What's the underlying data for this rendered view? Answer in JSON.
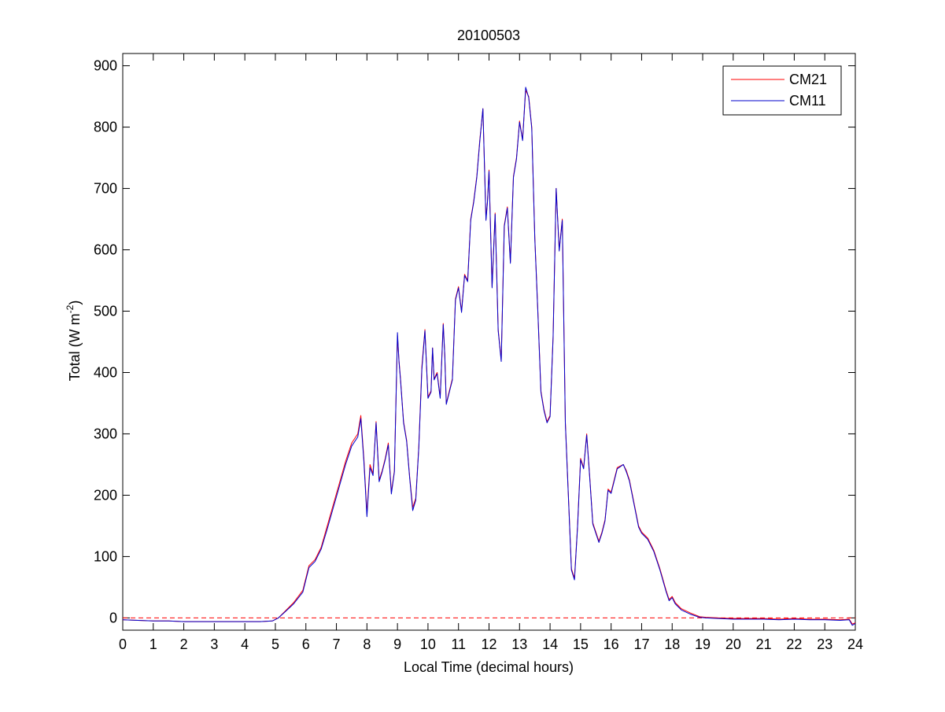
{
  "chart_data": {
    "type": "line",
    "title": "20100503",
    "xlabel": "Local Time (decimal hours)",
    "ylabel_main": "Total (W m",
    "ylabel_sup": "-2",
    "ylabel_close": ")",
    "xlim": [
      0,
      24
    ],
    "ylim": [
      -20,
      920
    ],
    "xticks": [
      0,
      1,
      2,
      3,
      4,
      5,
      6,
      7,
      8,
      9,
      10,
      11,
      12,
      13,
      14,
      15,
      16,
      17,
      18,
      19,
      20,
      21,
      22,
      23,
      24
    ],
    "yticks": [
      0,
      100,
      200,
      300,
      400,
      500,
      600,
      700,
      800,
      900
    ],
    "grid": false,
    "legend_position": "top-right",
    "zero_reference_line": {
      "y": 0,
      "style": "dashed",
      "color": "#ff0000"
    },
    "series": [
      {
        "name": "CM21",
        "color": "#ff0000",
        "x": [
          0,
          0.5,
          1,
          1.5,
          2,
          2.5,
          3,
          3.5,
          4,
          4.5,
          4.9,
          5.1,
          5.3,
          5.6,
          5.9,
          6.1,
          6.3,
          6.5,
          6.7,
          6.9,
          7.1,
          7.3,
          7.5,
          7.7,
          7.8,
          7.9,
          8.0,
          8.1,
          8.2,
          8.3,
          8.4,
          8.5,
          8.6,
          8.7,
          8.8,
          8.9,
          9.0,
          9.05,
          9.1,
          9.2,
          9.3,
          9.4,
          9.5,
          9.6,
          9.7,
          9.8,
          9.9,
          10.0,
          10.1,
          10.15,
          10.2,
          10.3,
          10.4,
          10.5,
          10.55,
          10.6,
          10.7,
          10.8,
          10.9,
          11.0,
          11.1,
          11.2,
          11.3,
          11.4,
          11.5,
          11.6,
          11.7,
          11.8,
          11.9,
          11.95,
          12.0,
          12.1,
          12.2,
          12.3,
          12.4,
          12.5,
          12.6,
          12.7,
          12.8,
          12.9,
          13.0,
          13.1,
          13.2,
          13.3,
          13.4,
          13.5,
          13.6,
          13.7,
          13.8,
          13.9,
          14.0,
          14.1,
          14.2,
          14.3,
          14.4,
          14.5,
          14.6,
          14.7,
          14.8,
          14.9,
          15.0,
          15.1,
          15.2,
          15.3,
          15.4,
          15.5,
          15.6,
          15.7,
          15.8,
          15.9,
          16.0,
          16.2,
          16.4,
          16.5,
          16.6,
          16.7,
          16.9,
          17.0,
          17.2,
          17.4,
          17.6,
          17.8,
          17.9,
          18.0,
          18.1,
          18.3,
          18.6,
          18.9,
          19.1,
          19.5,
          20,
          20.5,
          21,
          21.5,
          22,
          22.5,
          23,
          23.5,
          23.8,
          23.9,
          24
        ],
        "y": [
          -3,
          -4,
          -5,
          -5,
          -6,
          -6,
          -6,
          -6,
          -6,
          -6,
          -5,
          0,
          10,
          25,
          45,
          85,
          95,
          115,
          150,
          185,
          220,
          255,
          285,
          300,
          330,
          260,
          170,
          250,
          235,
          320,
          225,
          240,
          260,
          285,
          205,
          240,
          460,
          420,
          390,
          320,
          290,
          230,
          180,
          195,
          280,
          410,
          470,
          360,
          370,
          440,
          390,
          400,
          360,
          480,
          430,
          350,
          370,
          390,
          520,
          540,
          500,
          560,
          550,
          650,
          680,
          720,
          780,
          830,
          650,
          680,
          730,
          540,
          660,
          470,
          420,
          640,
          670,
          580,
          720,
          750,
          810,
          780,
          860,
          850,
          800,
          620,
          500,
          370,
          340,
          320,
          330,
          460,
          700,
          600,
          650,
          320,
          200,
          80,
          65,
          150,
          260,
          245,
          300,
          230,
          155,
          140,
          125,
          140,
          160,
          210,
          205,
          245,
          250,
          240,
          225,
          200,
          150,
          140,
          130,
          110,
          80,
          45,
          30,
          35,
          25,
          15,
          8,
          2,
          1,
          0,
          -1,
          -1,
          -1,
          -2,
          -1,
          -2,
          -2,
          -3,
          -2,
          -10,
          -8
        ]
      },
      {
        "name": "CM11",
        "color": "#0000cc",
        "x": [
          0,
          0.5,
          1,
          1.5,
          2,
          2.5,
          3,
          3.5,
          4,
          4.5,
          4.9,
          5.1,
          5.3,
          5.6,
          5.9,
          6.1,
          6.3,
          6.5,
          6.7,
          6.9,
          7.1,
          7.3,
          7.5,
          7.7,
          7.8,
          7.9,
          8.0,
          8.1,
          8.2,
          8.3,
          8.4,
          8.5,
          8.6,
          8.7,
          8.8,
          8.9,
          9.0,
          9.05,
          9.1,
          9.2,
          9.3,
          9.4,
          9.5,
          9.6,
          9.7,
          9.8,
          9.9,
          10.0,
          10.1,
          10.15,
          10.2,
          10.3,
          10.4,
          10.5,
          10.55,
          10.6,
          10.7,
          10.8,
          10.9,
          11.0,
          11.1,
          11.2,
          11.3,
          11.4,
          11.5,
          11.6,
          11.7,
          11.8,
          11.9,
          11.95,
          12.0,
          12.1,
          12.2,
          12.3,
          12.4,
          12.5,
          12.6,
          12.7,
          12.8,
          12.9,
          13.0,
          13.1,
          13.2,
          13.3,
          13.4,
          13.5,
          13.6,
          13.7,
          13.8,
          13.9,
          14.0,
          14.1,
          14.2,
          14.3,
          14.4,
          14.5,
          14.6,
          14.7,
          14.8,
          14.9,
          15.0,
          15.1,
          15.2,
          15.3,
          15.4,
          15.5,
          15.6,
          15.7,
          15.8,
          15.9,
          16.0,
          16.2,
          16.4,
          16.5,
          16.6,
          16.7,
          16.9,
          17.0,
          17.2,
          17.4,
          17.6,
          17.8,
          17.9,
          18.0,
          18.1,
          18.3,
          18.6,
          18.9,
          19.1,
          19.5,
          20,
          20.5,
          21,
          21.5,
          22,
          22.5,
          23,
          23.5,
          23.8,
          23.9,
          24
        ],
        "y": [
          -3,
          -4,
          -5,
          -5,
          -6,
          -6,
          -6,
          -6,
          -6,
          -6,
          -5,
          0,
          9,
          23,
          42,
          82,
          92,
          112,
          145,
          180,
          215,
          250,
          280,
          295,
          325,
          255,
          165,
          245,
          232,
          318,
          222,
          238,
          258,
          282,
          202,
          238,
          465,
          418,
          388,
          318,
          288,
          228,
          175,
          192,
          278,
          405,
          468,
          358,
          368,
          440,
          388,
          398,
          358,
          478,
          428,
          348,
          368,
          388,
          518,
          538,
          498,
          558,
          548,
          648,
          678,
          718,
          778,
          830,
          648,
          678,
          728,
          538,
          658,
          468,
          418,
          638,
          668,
          578,
          718,
          748,
          808,
          778,
          865,
          848,
          798,
          618,
          498,
          368,
          338,
          318,
          328,
          458,
          700,
          598,
          648,
          318,
          198,
          78,
          62,
          148,
          258,
          243,
          298,
          228,
          153,
          138,
          123,
          138,
          158,
          208,
          203,
          243,
          250,
          238,
          223,
          198,
          148,
          138,
          128,
          108,
          78,
          43,
          28,
          33,
          23,
          13,
          6,
          1,
          0,
          -1,
          -2,
          -2,
          -2,
          -3,
          -2,
          -3,
          -3,
          -4,
          -3,
          -12,
          -9
        ]
      }
    ]
  }
}
